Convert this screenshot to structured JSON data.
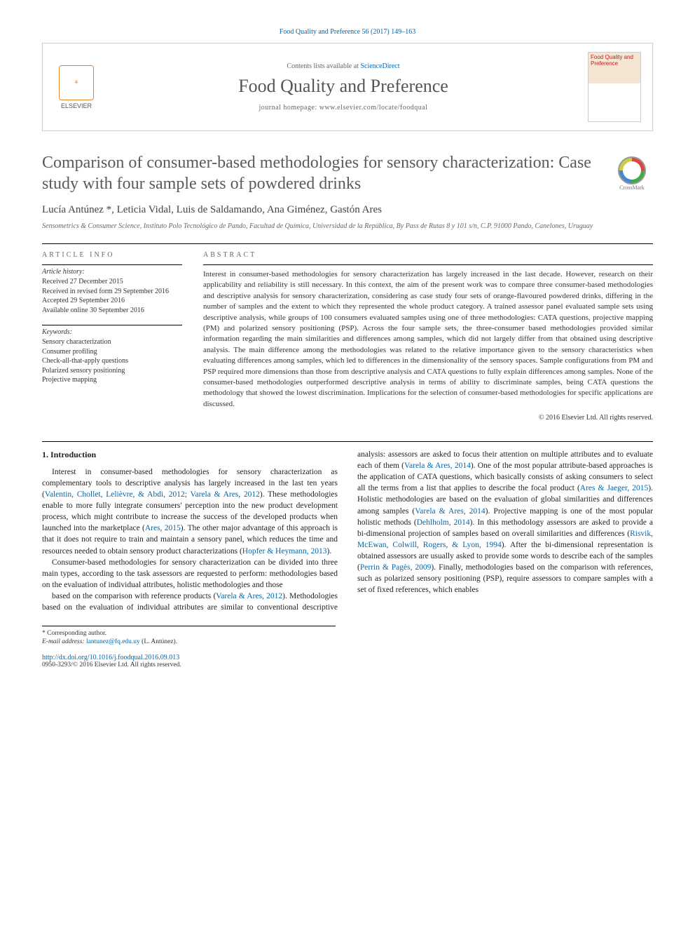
{
  "citation": "Food Quality and Preference 56 (2017) 149–163",
  "header": {
    "elsevier_label": "ELSEVIER",
    "contents_prefix": "Contents lists available at ",
    "contents_link": "ScienceDirect",
    "journal_name": "Food Quality and Preference",
    "homepage_label": "journal homepage: www.elsevier.com/locate/foodqual",
    "cover_title": "Food Quality and Preference"
  },
  "article": {
    "title": "Comparison of consumer-based methodologies for sensory characterization: Case study with four sample sets of powdered drinks",
    "crossmark_label": "CrossMark",
    "authors_html": "Lucía Antúnez *, Leticia Vidal, Luis de Saldamando, Ana Giménez, Gastón Ares",
    "affiliation": "Sensometrics & Consumer Science, Instituto Polo Tecnológico de Pando, Facultad de Química, Universidad de la República, By Pass de Rutas 8 y 101 s/n, C.P. 91000 Pando, Canelones, Uruguay"
  },
  "info": {
    "heading": "ARTICLE INFO",
    "history_label": "Article history:",
    "history": "Received 27 December 2015\nReceived in revised form 29 September 2016\nAccepted 29 September 2016\nAvailable online 30 September 2016",
    "keywords_label": "Keywords:",
    "keywords": "Sensory characterization\nConsumer profiling\nCheck-all-that-apply questions\nPolarized sensory positioning\nProjective mapping"
  },
  "abstract": {
    "heading": "ABSTRACT",
    "text": "Interest in consumer-based methodologies for sensory characterization has largely increased in the last decade. However, research on their applicability and reliability is still necessary. In this context, the aim of the present work was to compare three consumer-based methodologies and descriptive analysis for sensory characterization, considering as case study four sets of orange-flavoured powdered drinks, differing in the number of samples and the extent to which they represented the whole product category. A trained assessor panel evaluated sample sets using descriptive analysis, while groups of 100 consumers evaluated samples using one of three methodologies: CATA questions, projective mapping (PM) and polarized sensory positioning (PSP). Across the four sample sets, the three-consumer based methodologies provided similar information regarding the main similarities and differences among samples, which did not largely differ from that obtained using descriptive analysis. The main difference among the methodologies was related to the relative importance given to the sensory characteristics when evaluating differences among samples, which led to differences in the dimensionality of the sensory spaces. Sample configurations from PM and PSP required more dimensions than those from descriptive analysis and CATA questions to fully explain differences among samples. None of the consumer-based methodologies outperformed descriptive analysis in terms of ability to discriminate samples, being CATA questions the methodology that showed the lowest discrimination. Implications for the selection of consumer-based methodologies for specific applications are discussed.",
    "copyright": "© 2016 Elsevier Ltd. All rights reserved."
  },
  "body": {
    "section_heading": "1. Introduction",
    "p1a": "Interest in consumer-based methodologies for sensory characterization as complementary tools to descriptive analysis has largely increased in the last ten years (",
    "p1_ref1": "Valentin, Chollet, Lelièvre, & Abdi, 2012; Varela & Ares, 2012",
    "p1b": "). These methodologies enable to more fully integrate consumers' perception into the new product development process, which might contribute to increase the success of the developed products when launched into the marketplace (",
    "p1_ref2": "Ares, 2015",
    "p1c": "). The other major advantage of this approach is that it does not require to train and maintain a sensory panel, which reduces the time and resources needed to obtain sensory product characterizations (",
    "p1_ref3": "Hopfer & Heymann, 2013",
    "p1d": ").",
    "p2": "Consumer-based methodologies for sensory characterization can be divided into three main types, according to the task assessors are requested to perform: methodologies based on the evaluation of individual attributes, holistic methodologies and those",
    "p3a": "based on the comparison with reference products (",
    "p3_ref1": "Varela & Ares, 2012",
    "p3b": "). Methodologies based on the evaluation of individual attributes are similar to conventional descriptive analysis: assessors are asked to focus their attention on multiple attributes and to evaluate each of them (",
    "p3_ref2": "Varela & Ares, 2014",
    "p3c": "). One of the most popular attribute-based approaches is the application of CATA questions, which basically consists of asking consumers to select all the terms from a list that applies to describe the focal product (",
    "p3_ref3": "Ares & Jaeger, 2015",
    "p3d": "). Holistic methodologies are based on the evaluation of global similarities and differences among samples (",
    "p3_ref4": "Varela & Ares, 2014",
    "p3e": "). Projective mapping is one of the most popular holistic methods (",
    "p3_ref5": "Dehlholm, 2014",
    "p3f": "). In this methodology assessors are asked to provide a bi-dimensional projection of samples based on overall similarities and differences (",
    "p3_ref6": "Risvik, McEwan, Colwill, Rogers, & Lyon, 1994",
    "p3g": "). After the bi-dimensional representation is obtained assessors are usually asked to provide some words to describe each of the samples (",
    "p3_ref7": "Perrin & Pagès, 2009",
    "p3h": "). Finally, methodologies based on the comparison with references, such as polarized sensory positioning (PSP), require assessors to compare samples with a set of fixed references, which enables"
  },
  "footnote": {
    "corr": "* Corresponding author.",
    "email_label": "E-mail address:",
    "email": "lantunez@fq.edu.uy",
    "email_author": "(L. Antúnez)."
  },
  "footer": {
    "doi": "http://dx.doi.org/10.1016/j.foodqual.2016.09.013",
    "issn_copy": "0950-3293/© 2016 Elsevier Ltd. All rights reserved."
  },
  "colors": {
    "link": "#0066aa",
    "text": "#333333",
    "title_gray": "#5a5a5a",
    "orange": "#e8862b"
  }
}
